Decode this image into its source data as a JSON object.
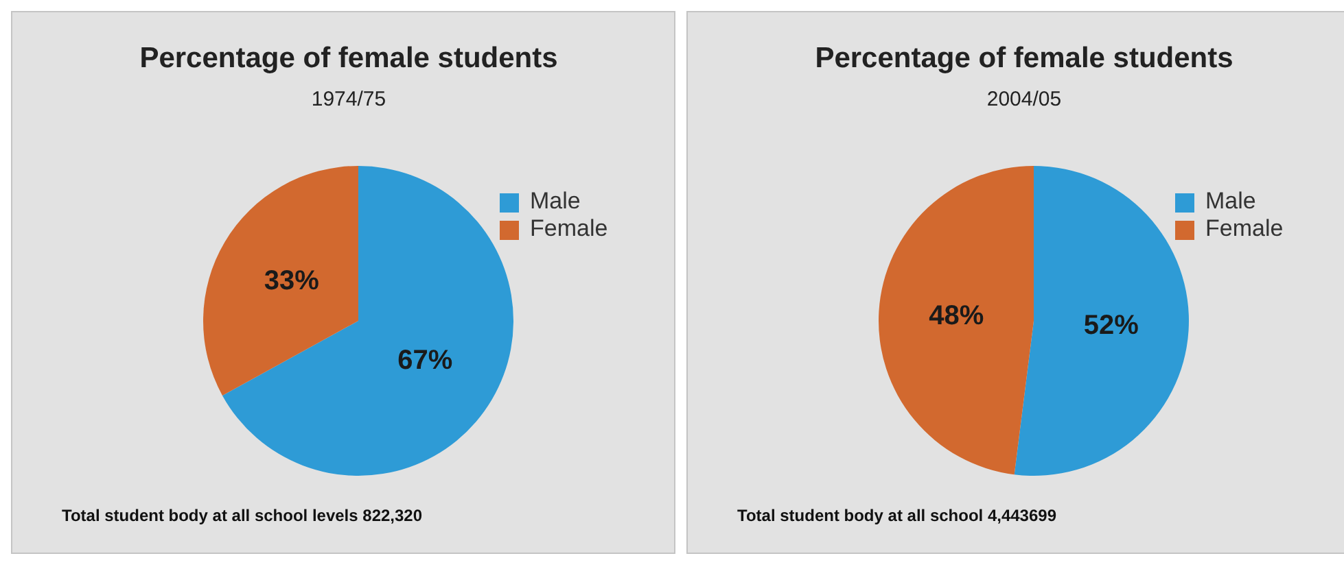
{
  "chart_data": [
    {
      "type": "pie",
      "title": "Percentage of female students",
      "subtitle": "1974/75",
      "categories": [
        "Male",
        "Female"
      ],
      "values": [
        67,
        33
      ],
      "colors": [
        "#2e9bd6",
        "#d2692f"
      ],
      "value_labels": [
        "67%",
        "33%"
      ],
      "legend": "right",
      "annotations": [
        "Total student body at all school levels 822,320"
      ]
    },
    {
      "type": "pie",
      "title": "Percentage of female students",
      "subtitle": "2004/05",
      "categories": [
        "Male",
        "Female"
      ],
      "values": [
        52,
        48
      ],
      "colors": [
        "#2e9bd6",
        "#d2692f"
      ],
      "value_labels": [
        "52%",
        "48%"
      ],
      "legend": "right",
      "annotations": [
        "Total student body at all school 4,443699"
      ]
    }
  ]
}
